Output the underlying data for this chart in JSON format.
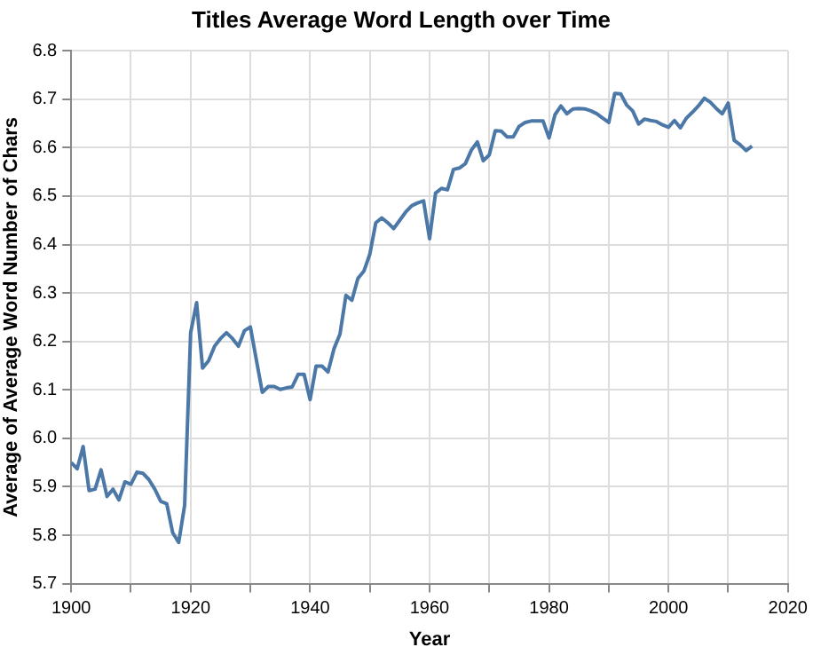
{
  "chart_data": {
    "type": "line",
    "title": "Titles Average Word Length over Time",
    "xlabel": "Year",
    "ylabel": "Average of Average Word Number of Chars",
    "x": [
      1900,
      1901,
      1902,
      1903,
      1904,
      1905,
      1906,
      1907,
      1908,
      1909,
      1910,
      1911,
      1912,
      1913,
      1914,
      1915,
      1916,
      1917,
      1918,
      1919,
      1920,
      1921,
      1922,
      1923,
      1924,
      1925,
      1926,
      1927,
      1928,
      1929,
      1930,
      1931,
      1932,
      1933,
      1934,
      1935,
      1936,
      1937,
      1938,
      1939,
      1940,
      1941,
      1942,
      1943,
      1944,
      1945,
      1946,
      1947,
      1948,
      1949,
      1950,
      1951,
      1952,
      1953,
      1954,
      1955,
      1956,
      1957,
      1958,
      1959,
      1960,
      1961,
      1962,
      1963,
      1964,
      1965,
      1966,
      1967,
      1968,
      1969,
      1970,
      1971,
      1972,
      1973,
      1974,
      1975,
      1976,
      1977,
      1978,
      1979,
      1980,
      1981,
      1982,
      1983,
      1984,
      1985,
      1986,
      1987,
      1988,
      1989,
      1990,
      1991,
      1992,
      1993,
      1994,
      1995,
      1996,
      1997,
      1998,
      1999,
      2000,
      2001,
      2002,
      2003,
      2004,
      2005,
      2006,
      2007,
      2008,
      2009,
      2010,
      2011,
      2012,
      2013,
      2014
    ],
    "series": [
      {
        "color": "#4c78a8",
        "values": [
          5.95,
          5.937,
          5.983,
          5.892,
          5.895,
          5.935,
          5.88,
          5.895,
          5.873,
          5.91,
          5.905,
          5.93,
          5.928,
          5.915,
          5.895,
          5.87,
          5.865,
          5.805,
          5.785,
          5.862,
          6.218,
          6.28,
          6.145,
          6.16,
          6.19,
          6.206,
          6.218,
          6.206,
          6.19,
          6.222,
          6.23,
          6.162,
          6.095,
          6.107,
          6.107,
          6.101,
          6.104,
          6.106,
          6.132,
          6.132,
          6.08,
          6.149,
          6.149,
          6.137,
          6.185,
          6.215,
          6.295,
          6.285,
          6.33,
          6.345,
          6.38,
          6.445,
          6.455,
          6.445,
          6.433,
          6.45,
          6.467,
          6.48,
          6.486,
          6.49,
          6.412,
          6.506,
          6.516,
          6.513,
          6.555,
          6.558,
          6.567,
          6.595,
          6.612,
          6.573,
          6.585,
          6.635,
          6.634,
          6.622,
          6.622,
          6.644,
          6.652,
          6.655,
          6.655,
          6.655,
          6.62,
          6.668,
          6.686,
          6.67,
          6.68,
          6.681,
          6.68,
          6.676,
          6.67,
          6.661,
          6.652,
          6.712,
          6.711,
          6.688,
          6.676,
          6.649,
          6.659,
          6.656,
          6.654,
          6.647,
          6.642,
          6.656,
          6.641,
          6.661,
          6.673,
          6.686,
          6.702,
          6.694,
          6.681,
          6.67,
          6.692,
          6.615,
          6.606,
          6.594,
          6.603
        ]
      }
    ],
    "xlim": [
      1900,
      2020
    ],
    "xticks": [
      1900,
      {
        "value": 1910,
        "label": null
      },
      1920,
      {
        "value": 1930,
        "label": null
      },
      1940,
      {
        "value": 1950,
        "label": null
      },
      1960,
      {
        "value": 1970,
        "label": null
      },
      1980,
      {
        "value": 1990,
        "label": null
      },
      2000,
      {
        "value": 2010,
        "label": null
      },
      2020
    ],
    "ylim": [
      5.7,
      6.8
    ],
    "yticks": [
      5.7,
      5.8,
      5.9,
      {
        "value": 6,
        "label": "6.0"
      },
      6.1,
      6.2,
      6.3,
      6.4,
      6.5,
      6.6,
      6.7,
      6.8
    ],
    "grid": true,
    "legend": false,
    "marker": "none",
    "line_style": "solid"
  }
}
